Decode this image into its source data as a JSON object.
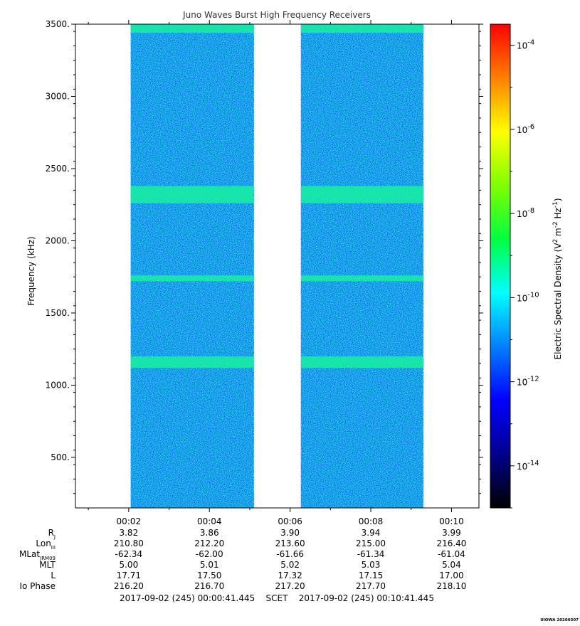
{
  "chart_data": {
    "type": "heatmap",
    "title": "Juno Waves Burst High Frequency Receivers",
    "ylabel": "Frequency (kHz)",
    "xlabel": "",
    "ylim": [
      150,
      3500
    ],
    "yticks": [
      {
        "value": 3500,
        "label": "3500."
      },
      {
        "value": 3000,
        "label": "3000."
      },
      {
        "value": 2500,
        "label": "2500."
      },
      {
        "value": 2000,
        "label": "2000."
      },
      {
        "value": 1500,
        "label": "1500."
      },
      {
        "value": 1000,
        "label": "1000."
      },
      {
        "value": 500,
        "label": "500."
      }
    ],
    "xlim_minutes": [
      0.68,
      10.68
    ],
    "xticks": [
      {
        "value": 2,
        "label": "00:02"
      },
      {
        "value": 4,
        "label": "00:04"
      },
      {
        "value": 6,
        "label": "00:06"
      },
      {
        "value": 8,
        "label": "00:08"
      },
      {
        "value": 10,
        "label": "00:10"
      }
    ],
    "data_intervals_minutes": [
      [
        2.05,
        5.1
      ],
      [
        6.27,
        9.3
      ]
    ],
    "emission_bands_khz": [
      {
        "low": 3440,
        "high": 3500,
        "level": "1e-11"
      },
      {
        "low": 2260,
        "high": 2380,
        "level": "3e-12"
      },
      {
        "low": 1720,
        "high": 1760,
        "level": "1e-11"
      },
      {
        "low": 1120,
        "high": 1200,
        "level": "3e-12"
      }
    ],
    "background_level": "1e-12",
    "colorbar": {
      "label": "Electric Spectral Density (V² m⁻² Hz⁻¹)",
      "label_text": "Electric Spectral Density",
      "label_unit_prefix": "(V",
      "label_unit_sup1": "2",
      "label_unit_mid": " m",
      "label_unit_sup2": "-2",
      "label_unit_mid2": " Hz",
      "label_unit_sup3": "-1",
      "label_unit_suffix": ")",
      "scale": "log",
      "range_exponent": [
        -15,
        -3.5
      ],
      "ticks": [
        {
          "base": "10",
          "exp": "-4",
          "value": -4
        },
        {
          "base": "10",
          "exp": "-6",
          "value": -6
        },
        {
          "base": "10",
          "exp": "-8",
          "value": -8
        },
        {
          "base": "10",
          "exp": "-10",
          "value": -10
        },
        {
          "base": "10",
          "exp": "-12",
          "value": -12
        },
        {
          "base": "10",
          "exp": "-14",
          "value": -14
        }
      ],
      "colors": [
        "#000000",
        "#00008c",
        "#0000ff",
        "#0080ff",
        "#00ffff",
        "#00ff40",
        "#80ff00",
        "#ffff00",
        "#ff8000",
        "#ff0000"
      ]
    },
    "ephemeris": {
      "rows": [
        {
          "label": "R",
          "sub": "J",
          "values": [
            "3.82",
            "3.86",
            "3.90",
            "3.94",
            "3.99"
          ]
        },
        {
          "label": "Lon",
          "sub": "III",
          "values": [
            "210.80",
            "212.20",
            "213.60",
            "215.00",
            "216.40"
          ]
        },
        {
          "label": "MLat",
          "sub": "JRM09",
          "values": [
            "-62.34",
            "-62.00",
            "-61.66",
            "-61.34",
            "-61.04"
          ]
        },
        {
          "label": "MLT",
          "sub": "",
          "values": [
            "5.00",
            "5.01",
            "5.02",
            "5.03",
            "5.04"
          ]
        },
        {
          "label": "L",
          "sub": "",
          "values": [
            "17.71",
            "17.50",
            "17.32",
            "17.15",
            "17.00"
          ]
        },
        {
          "label": "Io Phase",
          "sub": "",
          "values": [
            "216.20",
            "216.70",
            "217.20",
            "217.70",
            "218.10"
          ]
        }
      ]
    },
    "time_range": "2017-09-02 (245) 00:00:41.445    SCET    2017-09-02 (245) 00:10:41.445",
    "credit": "UIOWA 20200307"
  }
}
